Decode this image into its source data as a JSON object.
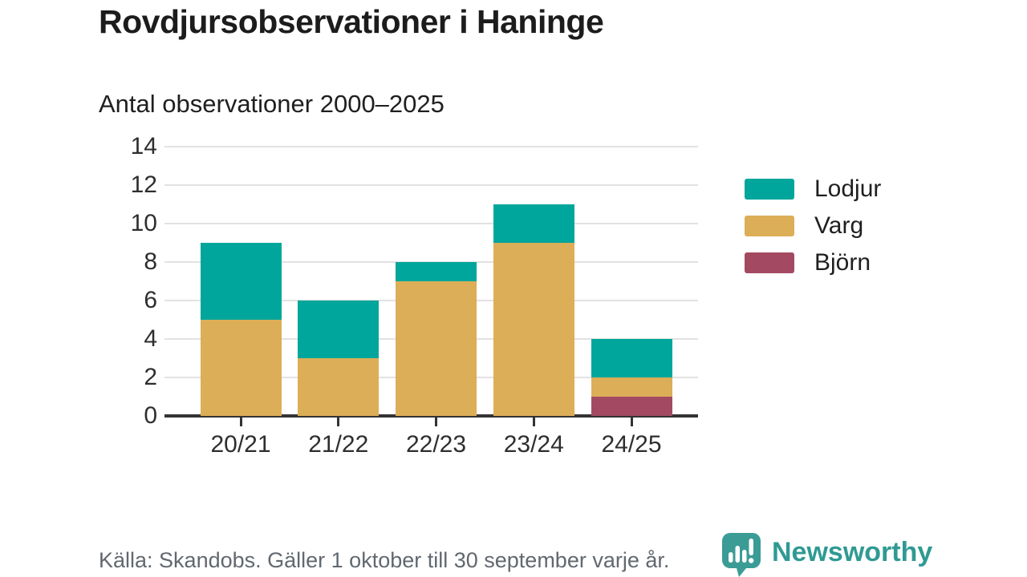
{
  "header": {
    "title": "Rovdjursobservationer i Haninge",
    "subtitle": "Antal observationer 2000–2025"
  },
  "chart_data": {
    "type": "bar",
    "stacked": true,
    "title": "Rovdjursobservationer i Haninge",
    "subtitle": "Antal observationer 2000–2025",
    "categories": [
      "20/21",
      "21/22",
      "22/23",
      "23/24",
      "24/25"
    ],
    "series": [
      {
        "name": "Björn",
        "color": "#a34a62",
        "values": [
          0,
          0,
          0,
          0,
          1
        ]
      },
      {
        "name": "Varg",
        "color": "#dcae58",
        "values": [
          5,
          3,
          7,
          9,
          1
        ]
      },
      {
        "name": "Lodjur",
        "color": "#00a69b",
        "values": [
          4,
          3,
          1,
          2,
          2
        ]
      }
    ],
    "totals": [
      9,
      6,
      8,
      11,
      4
    ],
    "legend_order": [
      "Lodjur",
      "Varg",
      "Björn"
    ],
    "legend_position": "right",
    "xlabel": "",
    "ylabel": "",
    "ylim": [
      0,
      14
    ],
    "yticks": [
      0,
      2,
      4,
      6,
      8,
      10,
      12,
      14
    ],
    "grid": true
  },
  "footer": {
    "source": "Källa: Skandobs. Gäller 1 oktober till 30 september varje år.",
    "brand": "Newsworthy"
  },
  "colors": {
    "lodjur": "#00a69b",
    "varg": "#dcae58",
    "bjorn": "#a34a62",
    "axis": "#333333",
    "gridline": "#e2e2e2",
    "text": "#1c1c1c",
    "source_text": "#62686f",
    "brand_teal": "#2f9a93"
  }
}
